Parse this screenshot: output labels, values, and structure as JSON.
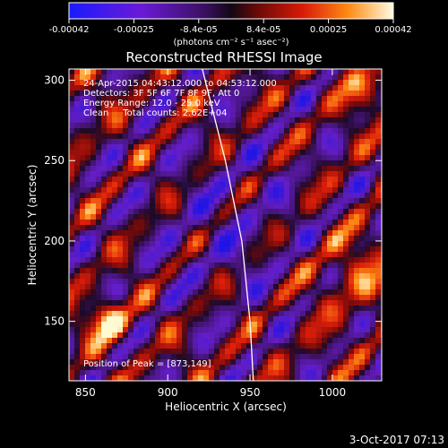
{
  "chart_data": {
    "type": "heatmap",
    "title": "Reconstructed RHESSI Image",
    "xlabel": "Heliocentric X (arcsec)",
    "ylabel": "Heliocentric Y (arcsec)",
    "xlim": [
      840,
      1030
    ],
    "ylim": [
      113,
      307
    ],
    "x_ticks": [
      850,
      900,
      950,
      1000
    ],
    "y_ticks": [
      150,
      200,
      250,
      300
    ],
    "colorbar": {
      "label": "(photons cm⁻² s⁻¹ asec⁻²)",
      "range": [
        -0.00042,
        0.00042
      ],
      "ticks": [
        "-0.00042",
        "-0.00025",
        "-8.4e-05",
        "8.4e-05",
        "0.00025",
        "0.00042"
      ]
    },
    "annotations": [
      "24-Apr-2015 04:43:12.000 to 04:53:12.000",
      "Detectors: 3F 5F 6F 7F 8F 9F, Att 0",
      "Energy Range: 12.0 - 25.0 keV",
      "Clean     Total counts: 2.62E+04"
    ],
    "peak_label": "Position of Peak = [873,149]",
    "peak": [
      873,
      149
    ],
    "limb_curve_x_at_y": [
      [
        921,
        307
      ],
      [
        935,
        250
      ],
      [
        945,
        200
      ],
      [
        950,
        150
      ],
      [
        952,
        113
      ]
    ],
    "footer_timestamp": "3-Oct-2017 07:13",
    "colors": {
      "accent": "#ffffff",
      "background": "#000000"
    }
  }
}
